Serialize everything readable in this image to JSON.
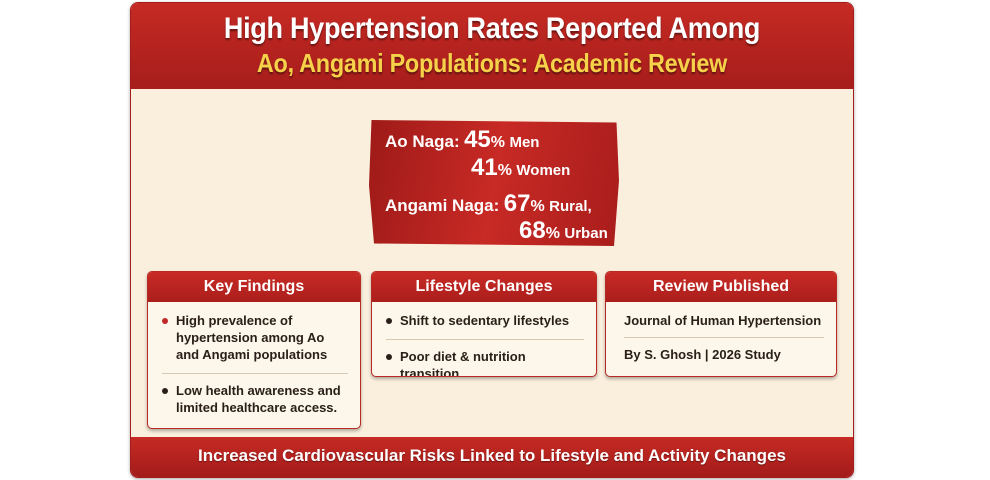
{
  "header": {
    "title_line1": "High Hypertension Rates Reported Among",
    "title_line2": "Ao, Angami Populations: Academic Review"
  },
  "stats": {
    "ao": {
      "label": "Ao Naga:",
      "men_value": "45",
      "men_label": "Men",
      "women_value": "41",
      "women_label": "Women"
    },
    "angami": {
      "label": "Angami Naga:",
      "rural_value": "67",
      "rural_label": "Rural,",
      "urban_value": "68",
      "urban_label": "Urban"
    },
    "percent_sign": "%"
  },
  "cards": {
    "key_findings": {
      "title": "Key Findings",
      "items": [
        "High prevalence of hypertension among Ao and Angami populations",
        "Low health awareness and limited healthcare access."
      ]
    },
    "lifestyle": {
      "title": "Lifestyle Changes",
      "items": [
        "Shift to sedentary lifestyles",
        "Poor diet & nutrition transition"
      ]
    },
    "review": {
      "title": "Review Published",
      "journal": "Journal of Human Hypertension",
      "byline": "By S. Ghosh | 2026 Study"
    }
  },
  "footer": {
    "text": "Increased Cardiovascular Risks Linked to Lifestyle and Activity Changes"
  },
  "colors": {
    "primary_red": "#b8231f",
    "accent_gold": "#f6d24a",
    "background_cream": "#faeedd",
    "bullet_red": "#c0282a",
    "text_dark": "#2a2019"
  }
}
